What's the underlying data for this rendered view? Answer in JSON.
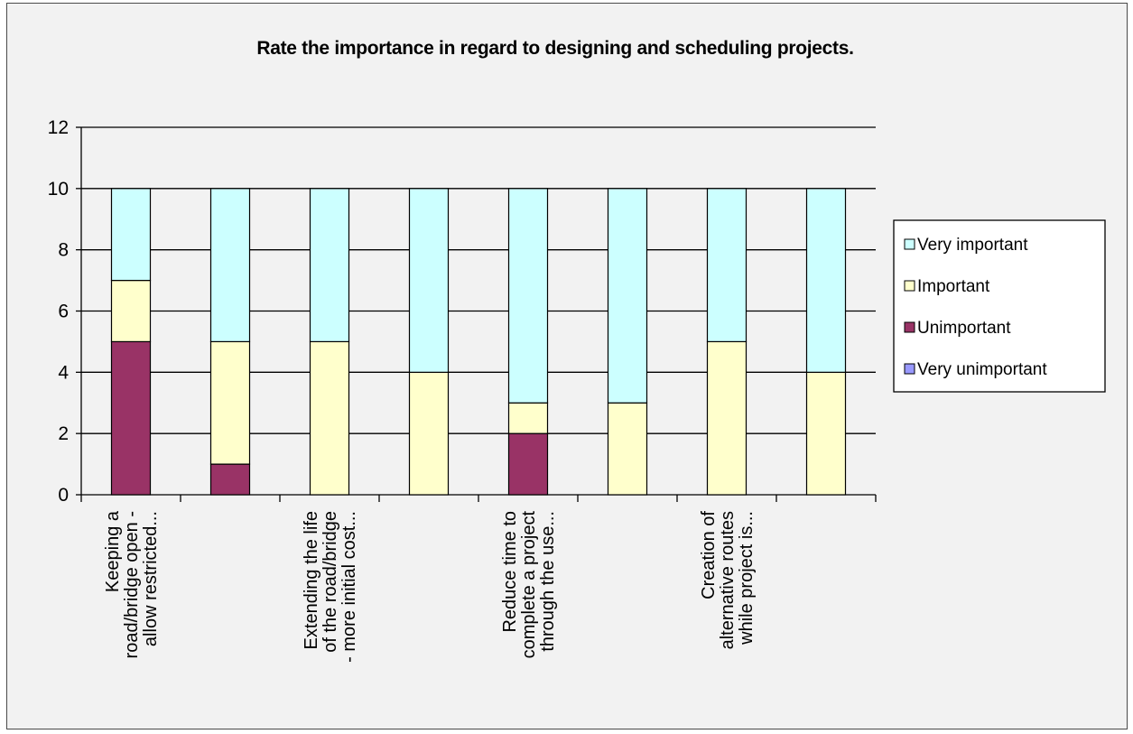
{
  "chart_data": {
    "type": "bar",
    "stacked": true,
    "title": "Rate the importance in regard to designing and scheduling projects.",
    "xlabel": "",
    "ylabel": "",
    "ylim": [
      0,
      12
    ],
    "yticks": [
      "0",
      "2",
      "4",
      "6",
      "8",
      "10",
      "12"
    ],
    "grid": true,
    "legend_position": "right",
    "categories": [
      [
        "Keeping a",
        "road/bridge open -",
        "allow restricted..."
      ],
      [],
      [
        "Extending the life",
        "of the road/bridge",
        "- more initial cost..."
      ],
      [],
      [
        "Reduce time to",
        "complete a project",
        "through the use..."
      ],
      [],
      [
        "Creation of",
        "alternative routes",
        "while project is..."
      ],
      []
    ],
    "series": [
      {
        "name": "Very unimportant",
        "color": "#9999ff",
        "values": [
          0,
          0,
          0,
          0,
          0,
          0,
          0,
          0
        ]
      },
      {
        "name": "Unimportant",
        "color": "#993366",
        "values": [
          5,
          1,
          0,
          0,
          2,
          0,
          0,
          0
        ]
      },
      {
        "name": "Important",
        "color": "#ffffcc",
        "values": [
          2,
          4,
          5,
          4,
          1,
          3,
          5,
          4
        ]
      },
      {
        "name": "Very important",
        "color": "#ccffff",
        "values": [
          3,
          5,
          5,
          6,
          7,
          7,
          5,
          6
        ]
      }
    ],
    "legend_order": [
      "Very important",
      "Important",
      "Unimportant",
      "Very unimportant"
    ]
  }
}
